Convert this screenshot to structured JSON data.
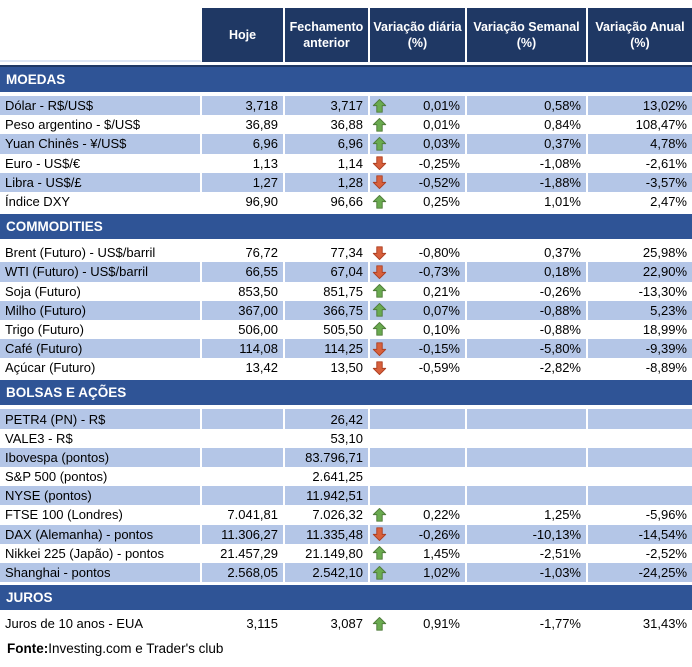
{
  "header": {
    "columns": [
      "Hoje",
      "Fechamento anterior",
      "Variação diária (%)",
      "Variação Semanal (%)",
      "Variação Anual (%)"
    ]
  },
  "colors": {
    "header_bg": "#1F3864",
    "section_bg": "#2F5496",
    "stripe_bg": "#B4C6E7",
    "arrow_up_fill": "#6AAB50",
    "arrow_up_stroke": "#4F7B3A",
    "arrow_down_fill": "#D8603C",
    "arrow_down_stroke": "#AC3F22"
  },
  "sections": [
    {
      "title": "MOEDAS",
      "first_row_shaded": true,
      "rows": [
        {
          "label": "Dólar - R$/US$",
          "hoje": "3,718",
          "fechamento": "3,717",
          "arrow": "up",
          "var_diaria": "0,01%",
          "var_semanal": "0,58%",
          "var_anual": "13,02%"
        },
        {
          "label": "Peso argentino - $/US$",
          "hoje": "36,89",
          "fechamento": "36,88",
          "arrow": "up",
          "var_diaria": "0,01%",
          "var_semanal": "0,84%",
          "var_anual": "108,47%"
        },
        {
          "label": "Yuan Chinês - ¥/US$",
          "hoje": "6,96",
          "fechamento": "6,96",
          "arrow": "up",
          "var_diaria": "0,03%",
          "var_semanal": "0,37%",
          "var_anual": "4,78%"
        },
        {
          "label": "Euro - US$/€",
          "hoje": "1,13",
          "fechamento": "1,14",
          "arrow": "down",
          "var_diaria": "-0,25%",
          "var_semanal": "-1,08%",
          "var_anual": "-2,61%"
        },
        {
          "label": "Libra - US$/£",
          "hoje": "1,27",
          "fechamento": "1,28",
          "arrow": "down",
          "var_diaria": "-0,52%",
          "var_semanal": "-1,88%",
          "var_anual": "-3,57%"
        },
        {
          "label": "Índice DXY",
          "hoje": "96,90",
          "fechamento": "96,66",
          "arrow": "up",
          "var_diaria": "0,25%",
          "var_semanal": "1,01%",
          "var_anual": "2,47%"
        }
      ]
    },
    {
      "title": "COMMODITIES",
      "first_row_shaded": false,
      "rows": [
        {
          "label": "Brent (Futuro) - US$/barril",
          "hoje": "76,72",
          "fechamento": "77,34",
          "arrow": "down",
          "var_diaria": "-0,80%",
          "var_semanal": "0,37%",
          "var_anual": "25,98%"
        },
        {
          "label": "WTI (Futuro) - US$/barril",
          "hoje": "66,55",
          "fechamento": "67,04",
          "arrow": "down",
          "var_diaria": "-0,73%",
          "var_semanal": "0,18%",
          "var_anual": "22,90%"
        },
        {
          "label": "Soja (Futuro)",
          "hoje": "853,50",
          "fechamento": "851,75",
          "arrow": "up",
          "var_diaria": "0,21%",
          "var_semanal": "-0,26%",
          "var_anual": "-13,30%"
        },
        {
          "label": "Milho (Futuro)",
          "hoje": "367,00",
          "fechamento": "366,75",
          "arrow": "up",
          "var_diaria": "0,07%",
          "var_semanal": "-0,88%",
          "var_anual": "5,23%"
        },
        {
          "label": "Trigo (Futuro)",
          "hoje": "506,00",
          "fechamento": "505,50",
          "arrow": "up",
          "var_diaria": "0,10%",
          "var_semanal": "-0,88%",
          "var_anual": "18,99%"
        },
        {
          "label": "Café (Futuro)",
          "hoje": "114,08",
          "fechamento": "114,25",
          "arrow": "down",
          "var_diaria": "-0,15%",
          "var_semanal": "-5,80%",
          "var_anual": "-9,39%"
        },
        {
          "label": "Açúcar (Futuro)",
          "hoje": "13,42",
          "fechamento": "13,50",
          "arrow": "down",
          "var_diaria": "-0,59%",
          "var_semanal": "-2,82%",
          "var_anual": "-8,89%"
        }
      ]
    },
    {
      "title": "BOLSAS E AÇÕES",
      "first_row_shaded": true,
      "rows": [
        {
          "label": "PETR4 (PN) - R$",
          "hoje": "",
          "fechamento": "26,42",
          "arrow": "",
          "var_diaria": "",
          "var_semanal": "",
          "var_anual": ""
        },
        {
          "label": "VALE3 - R$",
          "hoje": "",
          "fechamento": "53,10",
          "arrow": "",
          "var_diaria": "",
          "var_semanal": "",
          "var_anual": ""
        },
        {
          "label": "Ibovespa (pontos)",
          "hoje": "",
          "fechamento": "83.796,71",
          "arrow": "",
          "var_diaria": "",
          "var_semanal": "",
          "var_anual": ""
        },
        {
          "label": "S&P 500 (pontos)",
          "hoje": "",
          "fechamento": "2.641,25",
          "arrow": "",
          "var_diaria": "",
          "var_semanal": "",
          "var_anual": ""
        },
        {
          "label": "NYSE (pontos)",
          "hoje": "",
          "fechamento": "11.942,51",
          "arrow": "",
          "var_diaria": "",
          "var_semanal": "",
          "var_anual": ""
        },
        {
          "label": "FTSE 100 (Londres)",
          "hoje": "7.041,81",
          "fechamento": "7.026,32",
          "arrow": "up",
          "var_diaria": "0,22%",
          "var_semanal": "1,25%",
          "var_anual": "-5,96%"
        },
        {
          "label": "DAX (Alemanha) - pontos",
          "hoje": "11.306,27",
          "fechamento": "11.335,48",
          "arrow": "down",
          "var_diaria": "-0,26%",
          "var_semanal": "-10,13%",
          "var_anual": "-14,54%"
        },
        {
          "label": "Nikkei 225 (Japão) - pontos",
          "hoje": "21.457,29",
          "fechamento": "21.149,80",
          "arrow": "up",
          "var_diaria": "1,45%",
          "var_semanal": "-2,51%",
          "var_anual": "-2,52%"
        },
        {
          "label": "Shanghai - pontos",
          "hoje": "2.568,05",
          "fechamento": "2.542,10",
          "arrow": "up",
          "var_diaria": "1,02%",
          "var_semanal": "-1,03%",
          "var_anual": "-24,25%"
        }
      ]
    },
    {
      "title": "JUROS",
      "first_row_shaded": false,
      "rows": [
        {
          "label": "Juros de 10 anos - EUA",
          "hoje": "3,115",
          "fechamento": "3,087",
          "arrow": "up",
          "var_diaria": "0,91%",
          "var_semanal": "-1,77%",
          "var_anual": "31,43%"
        }
      ]
    }
  ],
  "footer": {
    "label": "Fonte:",
    "text": " Investing.com e Trader's club"
  }
}
